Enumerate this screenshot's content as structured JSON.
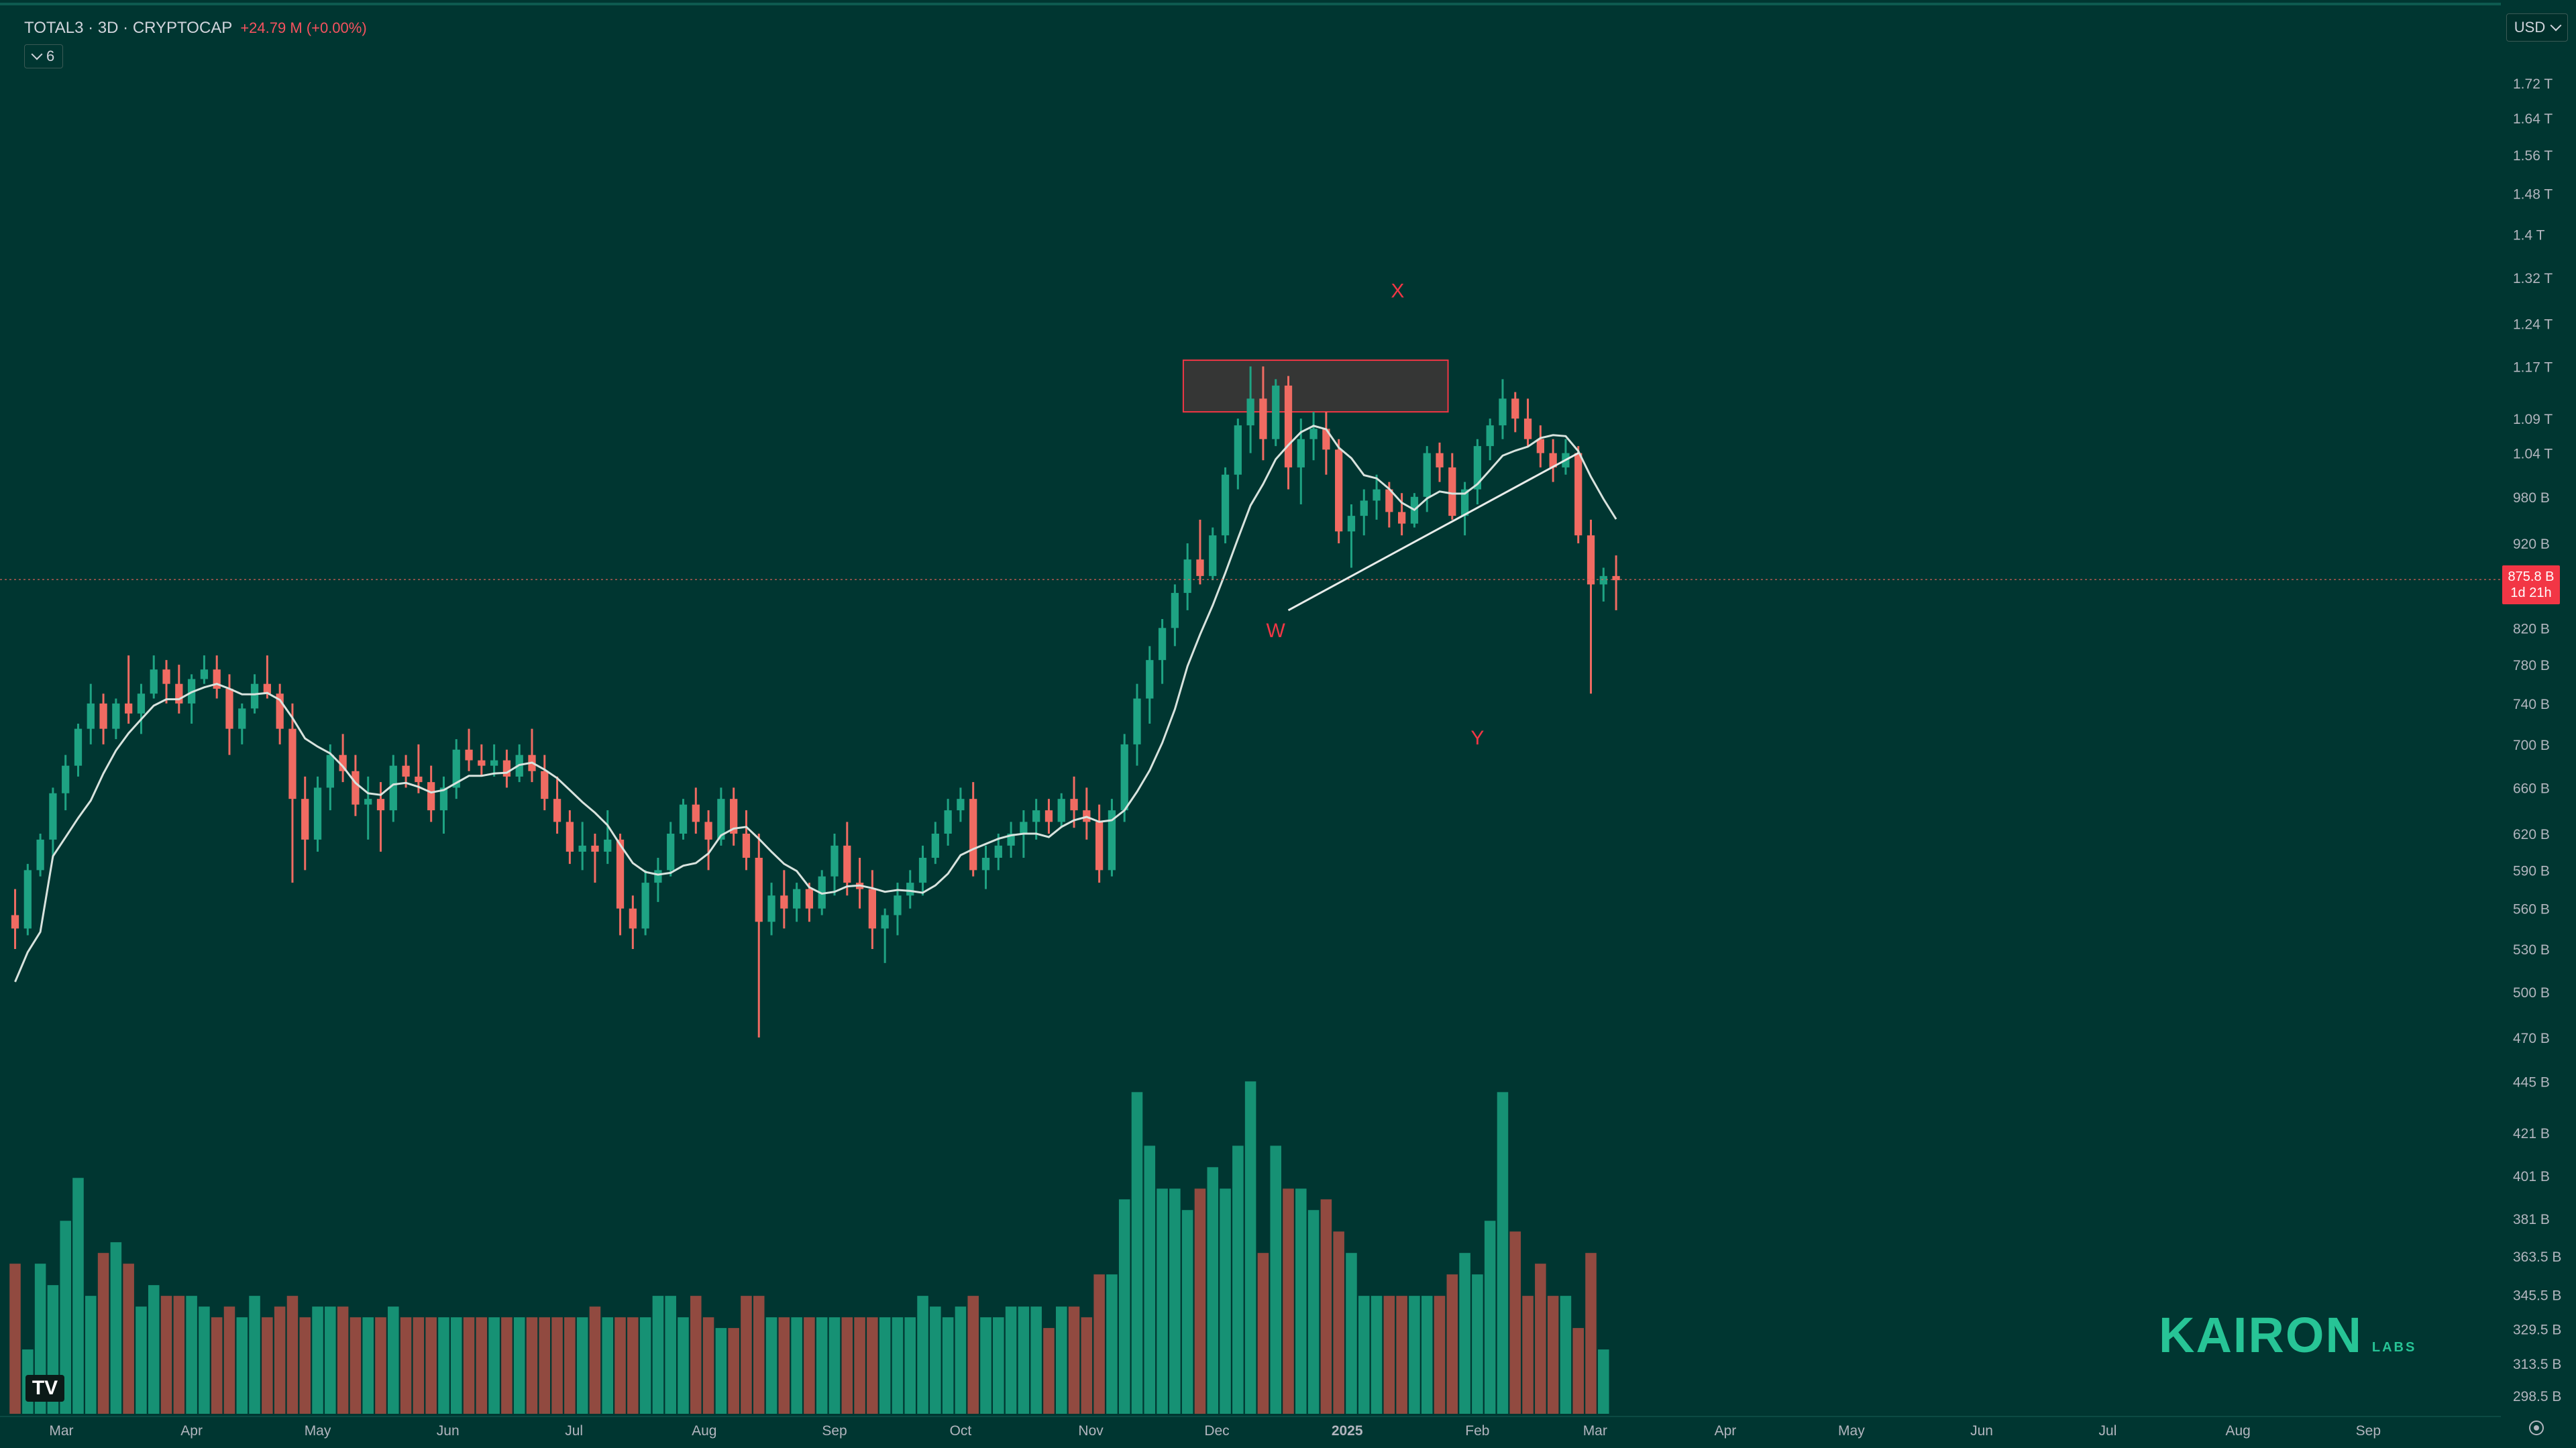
{
  "header": {
    "symbol": "TOTAL3 · 3D · CRYPTOCAP",
    "change": "+24.79 M (+0.00%)",
    "indicator_count": "6",
    "currency": "USD"
  },
  "price_tag": {
    "price": "875.8 B",
    "countdown": "1d 21h"
  },
  "brand": {
    "name": "KAIRON",
    "sub": "LABS"
  },
  "tv_logo": "TV",
  "colors": {
    "background": "#003631",
    "up": "#1ea383",
    "down": "#f06b62",
    "volume_up": "#169174",
    "volume_down": "#914a40",
    "ma": "#d8e3de",
    "grid_text": "#b2b5be",
    "annotation": "#f23645",
    "brand": "#27c496"
  },
  "chart_data": {
    "type": "candlestick",
    "timeframe": "3D",
    "x_range": [
      "2024-02-17",
      "2025-09-30"
    ],
    "y_range": [
      456000000000,
      1790000000000
    ],
    "y_scale": "log",
    "y_ticks": [
      "1.72 T",
      "1.64 T",
      "1.56 T",
      "1.48 T",
      "1.4 T",
      "1.32 T",
      "1.24 T",
      "1.17 T",
      "1.09 T",
      "1.04 T",
      "980 B",
      "920 B",
      "820 B",
      "780 B",
      "740 B",
      "700 B",
      "660 B",
      "620 B",
      "590 B",
      "560 B",
      "530 B",
      "500 B",
      "470 B"
    ],
    "y_tick_values": [
      1720,
      1640,
      1560,
      1480,
      1400,
      1320,
      1240,
      1170,
      1090,
      1040,
      980,
      920,
      820,
      780,
      740,
      700,
      660,
      620,
      590,
      560,
      530,
      500,
      470
    ],
    "volume_ticks": [
      "445 B",
      "421 B",
      "401 B",
      "381 B",
      "363.5 B",
      "345.5 B",
      "329.5 B",
      "313.5 B",
      "298.5 B"
    ],
    "x_ticks": [
      "Mar",
      "Apr",
      "May",
      "Jun",
      "Jul",
      "Aug",
      "Sep",
      "Oct",
      "Nov",
      "Dec",
      "2025",
      "Feb",
      "Mar",
      "Apr",
      "May",
      "Jun",
      "Jul",
      "Aug",
      "Sep"
    ],
    "x_tick_dates": [
      "2024-03-01",
      "2024-04-01",
      "2024-05-01",
      "2024-06-01",
      "2024-07-01",
      "2024-08-01",
      "2024-09-01",
      "2024-10-01",
      "2024-11-01",
      "2024-12-01",
      "2025-01-01",
      "2025-02-01",
      "2025-03-01",
      "2025-04-01",
      "2025-05-01",
      "2025-06-01",
      "2025-07-01",
      "2025-08-01",
      "2025-09-01"
    ],
    "first_candle_date": "2024-02-19",
    "candle_days": 3,
    "ohlc": [
      [
        555,
        575,
        530,
        545
      ],
      [
        545,
        595,
        540,
        590
      ],
      [
        590,
        620,
        585,
        615
      ],
      [
        615,
        660,
        600,
        655
      ],
      [
        655,
        690,
        640,
        680
      ],
      [
        680,
        720,
        670,
        715
      ],
      [
        715,
        760,
        700,
        740
      ],
      [
        740,
        750,
        700,
        715
      ],
      [
        715,
        745,
        705,
        740
      ],
      [
        740,
        790,
        720,
        730
      ],
      [
        730,
        760,
        710,
        750
      ],
      [
        750,
        790,
        745,
        775
      ],
      [
        775,
        785,
        740,
        760
      ],
      [
        760,
        780,
        730,
        740
      ],
      [
        740,
        770,
        720,
        765
      ],
      [
        765,
        790,
        760,
        775
      ],
      [
        775,
        790,
        745,
        755
      ],
      [
        755,
        770,
        690,
        715
      ],
      [
        715,
        740,
        700,
        735
      ],
      [
        735,
        770,
        730,
        760
      ],
      [
        760,
        790,
        745,
        750
      ],
      [
        750,
        760,
        700,
        715
      ],
      [
        715,
        740,
        580,
        650
      ],
      [
        650,
        670,
        590,
        615
      ],
      [
        615,
        670,
        605,
        660
      ],
      [
        660,
        700,
        640,
        690
      ],
      [
        690,
        710,
        665,
        675
      ],
      [
        675,
        690,
        635,
        645
      ],
      [
        645,
        670,
        615,
        650
      ],
      [
        650,
        665,
        605,
        640
      ],
      [
        640,
        690,
        630,
        680
      ],
      [
        680,
        690,
        660,
        670
      ],
      [
        670,
        700,
        655,
        665
      ],
      [
        665,
        680,
        630,
        640
      ],
      [
        640,
        670,
        620,
        660
      ],
      [
        660,
        705,
        650,
        695
      ],
      [
        695,
        715,
        675,
        685
      ],
      [
        685,
        700,
        670,
        680
      ],
      [
        680,
        700,
        670,
        685
      ],
      [
        685,
        695,
        660,
        670
      ],
      [
        670,
        700,
        665,
        690
      ],
      [
        690,
        715,
        665,
        675
      ],
      [
        675,
        690,
        640,
        650
      ],
      [
        650,
        670,
        620,
        630
      ],
      [
        630,
        640,
        595,
        605
      ],
      [
        605,
        630,
        590,
        610
      ],
      [
        610,
        620,
        580,
        605
      ],
      [
        605,
        640,
        595,
        615
      ],
      [
        615,
        620,
        540,
        560
      ],
      [
        560,
        570,
        530,
        545
      ],
      [
        545,
        590,
        540,
        580
      ],
      [
        580,
        600,
        565,
        590
      ],
      [
        590,
        630,
        585,
        620
      ],
      [
        620,
        650,
        615,
        645
      ],
      [
        645,
        660,
        620,
        630
      ],
      [
        630,
        640,
        590,
        615
      ],
      [
        615,
        660,
        610,
        650
      ],
      [
        650,
        660,
        610,
        620
      ],
      [
        620,
        640,
        590,
        600
      ],
      [
        600,
        620,
        470,
        550
      ],
      [
        550,
        580,
        540,
        570
      ],
      [
        570,
        590,
        545,
        560
      ],
      [
        560,
        580,
        550,
        575
      ],
      [
        575,
        580,
        550,
        560
      ],
      [
        560,
        590,
        555,
        585
      ],
      [
        585,
        620,
        570,
        610
      ],
      [
        610,
        630,
        570,
        580
      ],
      [
        580,
        600,
        560,
        575
      ],
      [
        575,
        590,
        530,
        545
      ],
      [
        545,
        560,
        520,
        555
      ],
      [
        555,
        580,
        540,
        570
      ],
      [
        570,
        590,
        560,
        580
      ],
      [
        580,
        610,
        570,
        600
      ],
      [
        600,
        630,
        595,
        620
      ],
      [
        620,
        650,
        610,
        640
      ],
      [
        640,
        660,
        630,
        650
      ],
      [
        650,
        665,
        585,
        590
      ],
      [
        590,
        610,
        575,
        600
      ],
      [
        600,
        620,
        590,
        610
      ],
      [
        610,
        630,
        600,
        620
      ],
      [
        620,
        640,
        600,
        630
      ],
      [
        630,
        650,
        615,
        640
      ],
      [
        640,
        650,
        620,
        630
      ],
      [
        630,
        655,
        625,
        650
      ],
      [
        650,
        670,
        625,
        640
      ],
      [
        640,
        660,
        615,
        630
      ],
      [
        630,
        645,
        580,
        590
      ],
      [
        590,
        650,
        585,
        640
      ],
      [
        640,
        710,
        630,
        700
      ],
      [
        700,
        760,
        680,
        745
      ],
      [
        745,
        800,
        720,
        785
      ],
      [
        785,
        830,
        760,
        820
      ],
      [
        820,
        870,
        800,
        860
      ],
      [
        860,
        920,
        840,
        900
      ],
      [
        900,
        950,
        870,
        880
      ],
      [
        880,
        940,
        875,
        930
      ],
      [
        930,
        1020,
        920,
        1010
      ],
      [
        1010,
        1090,
        990,
        1080
      ],
      [
        1080,
        1170,
        1040,
        1120
      ],
      [
        1120,
        1170,
        1030,
        1060
      ],
      [
        1060,
        1150,
        1050,
        1140
      ],
      [
        1140,
        1155,
        990,
        1020
      ],
      [
        1020,
        1090,
        970,
        1060
      ],
      [
        1060,
        1100,
        1030,
        1075
      ],
      [
        1075,
        1100,
        1010,
        1045
      ],
      [
        1045,
        1060,
        920,
        935
      ],
      [
        935,
        970,
        890,
        955
      ],
      [
        955,
        990,
        930,
        975
      ],
      [
        975,
        1010,
        950,
        990
      ],
      [
        990,
        1000,
        940,
        960
      ],
      [
        960,
        985,
        930,
        945
      ],
      [
        945,
        985,
        940,
        980
      ],
      [
        980,
        1050,
        960,
        1040
      ],
      [
        1040,
        1055,
        1000,
        1020
      ],
      [
        1020,
        1040,
        950,
        955
      ],
      [
        955,
        1000,
        930,
        990
      ],
      [
        990,
        1060,
        970,
        1050
      ],
      [
        1050,
        1090,
        1030,
        1080
      ],
      [
        1080,
        1150,
        1060,
        1120
      ],
      [
        1120,
        1130,
        1070,
        1090
      ],
      [
        1090,
        1120,
        1050,
        1060
      ],
      [
        1060,
        1080,
        1020,
        1040
      ],
      [
        1040,
        1060,
        1000,
        1020
      ],
      [
        1020,
        1060,
        1010,
        1040
      ],
      [
        1040,
        1050,
        920,
        930
      ],
      [
        930,
        950,
        750,
        870
      ],
      [
        870,
        890,
        850,
        880
      ],
      [
        880,
        905,
        840,
        875
      ]
    ],
    "volume": [
      360,
      320,
      360,
      350,
      380,
      400,
      345,
      365,
      370,
      360,
      340,
      350,
      345,
      345,
      345,
      340,
      335,
      340,
      335,
      345,
      335,
      340,
      345,
      335,
      340,
      340,
      340,
      335,
      335,
      335,
      340,
      335,
      335,
      335,
      335,
      335,
      335,
      335,
      335,
      335,
      335,
      335,
      335,
      335,
      335,
      335,
      340,
      335,
      335,
      335,
      335,
      345,
      345,
      335,
      345,
      335,
      330,
      330,
      345,
      345,
      335,
      335,
      335,
      335,
      335,
      335,
      335,
      335,
      335,
      335,
      335,
      335,
      345,
      340,
      335,
      340,
      345,
      335,
      335,
      340,
      340,
      340,
      330,
      340,
      340,
      335,
      355,
      355,
      390,
      440,
      415,
      395,
      395,
      385,
      395,
      405,
      395,
      415,
      445,
      365,
      415,
      395,
      395,
      385,
      390,
      375,
      365,
      345,
      345,
      345,
      345,
      345,
      345,
      345,
      355,
      365,
      355,
      380,
      440,
      375,
      345,
      360,
      345,
      345,
      330,
      365,
      320
    ]
  },
  "overlays": {
    "resistance_box": {
      "from": "2024-11-23",
      "to": "2025-01-25",
      "top": 1180,
      "bottom": 1100
    },
    "trendline": {
      "from": "2024-12-18",
      "from_value": 840,
      "to": "2025-02-25",
      "to_value": 1040
    },
    "current_price_level": 875.8,
    "labels": [
      {
        "text": "X",
        "date": "2025-01-13",
        "value": 1285
      },
      {
        "text": "W",
        "date": "2024-12-15",
        "value": 810
      },
      {
        "text": "Y",
        "date": "2025-02-01",
        "value": 700
      }
    ]
  }
}
